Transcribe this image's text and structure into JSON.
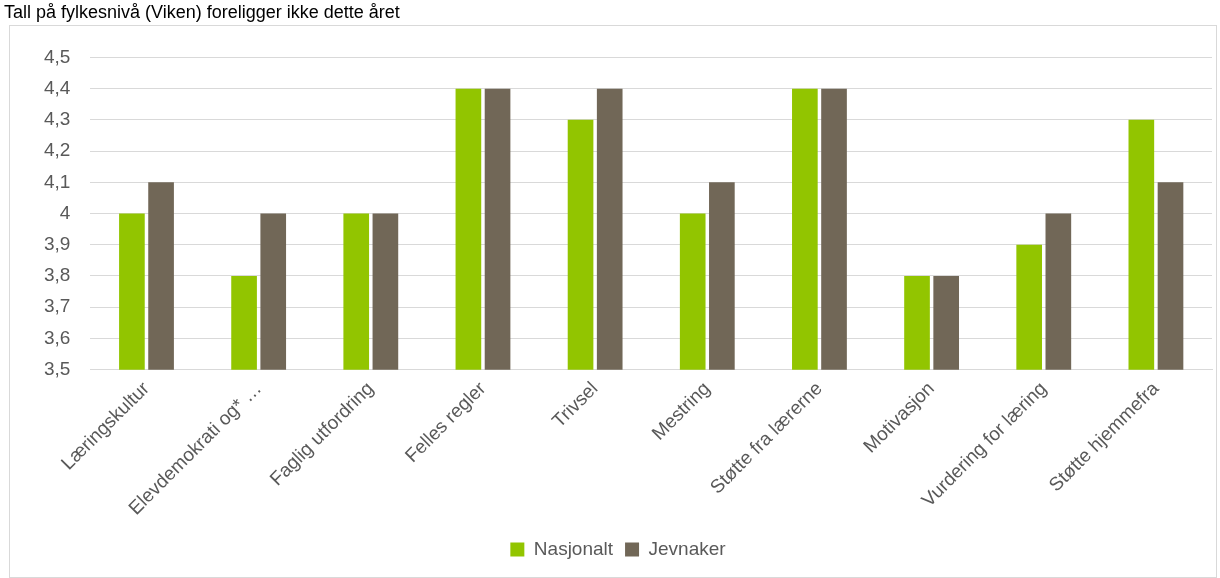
{
  "chart_data": {
    "type": "bar",
    "annotations": [
      "Tall på fylkesnivå (Viken) foreligger ikke dette året"
    ],
    "categories": [
      "Læringskultur",
      "Elevdemokrati og* …",
      "Faglig utfordring",
      "Felles regler",
      "Trivsel",
      "Mestring",
      "Støtte fra lærerne",
      "Motivasjon",
      "Vurdering for læring",
      "Støtte hjemmefra"
    ],
    "series": [
      {
        "name": "Nasjonalt",
        "color": "#92c500",
        "values": [
          4.0,
          3.8,
          4.0,
          4.4,
          4.3,
          4.0,
          4.4,
          3.8,
          3.9,
          4.3
        ]
      },
      {
        "name": "Jevnaker",
        "color": "#716757",
        "values": [
          4.1,
          4.0,
          4.0,
          4.4,
          4.4,
          4.1,
          4.4,
          3.8,
          4.0,
          4.1
        ]
      }
    ],
    "ylim": [
      3.5,
      4.5
    ],
    "yticks": [
      {
        "value": 3.5,
        "label": "3,5"
      },
      {
        "value": 3.6,
        "label": "3,6"
      },
      {
        "value": 3.7,
        "label": "3,7"
      },
      {
        "value": 3.8,
        "label": "3,8"
      },
      {
        "value": 3.9,
        "label": "3,9"
      },
      4,
      {
        "value": 4.1,
        "label": "4,1"
      },
      {
        "value": 4.2,
        "label": "4,2"
      },
      {
        "value": 4.3,
        "label": "4,3"
      },
      {
        "value": 4.4,
        "label": "4,4"
      },
      {
        "value": 4.5,
        "label": "4,5"
      }
    ],
    "grid": "y",
    "legend": "bottom"
  }
}
